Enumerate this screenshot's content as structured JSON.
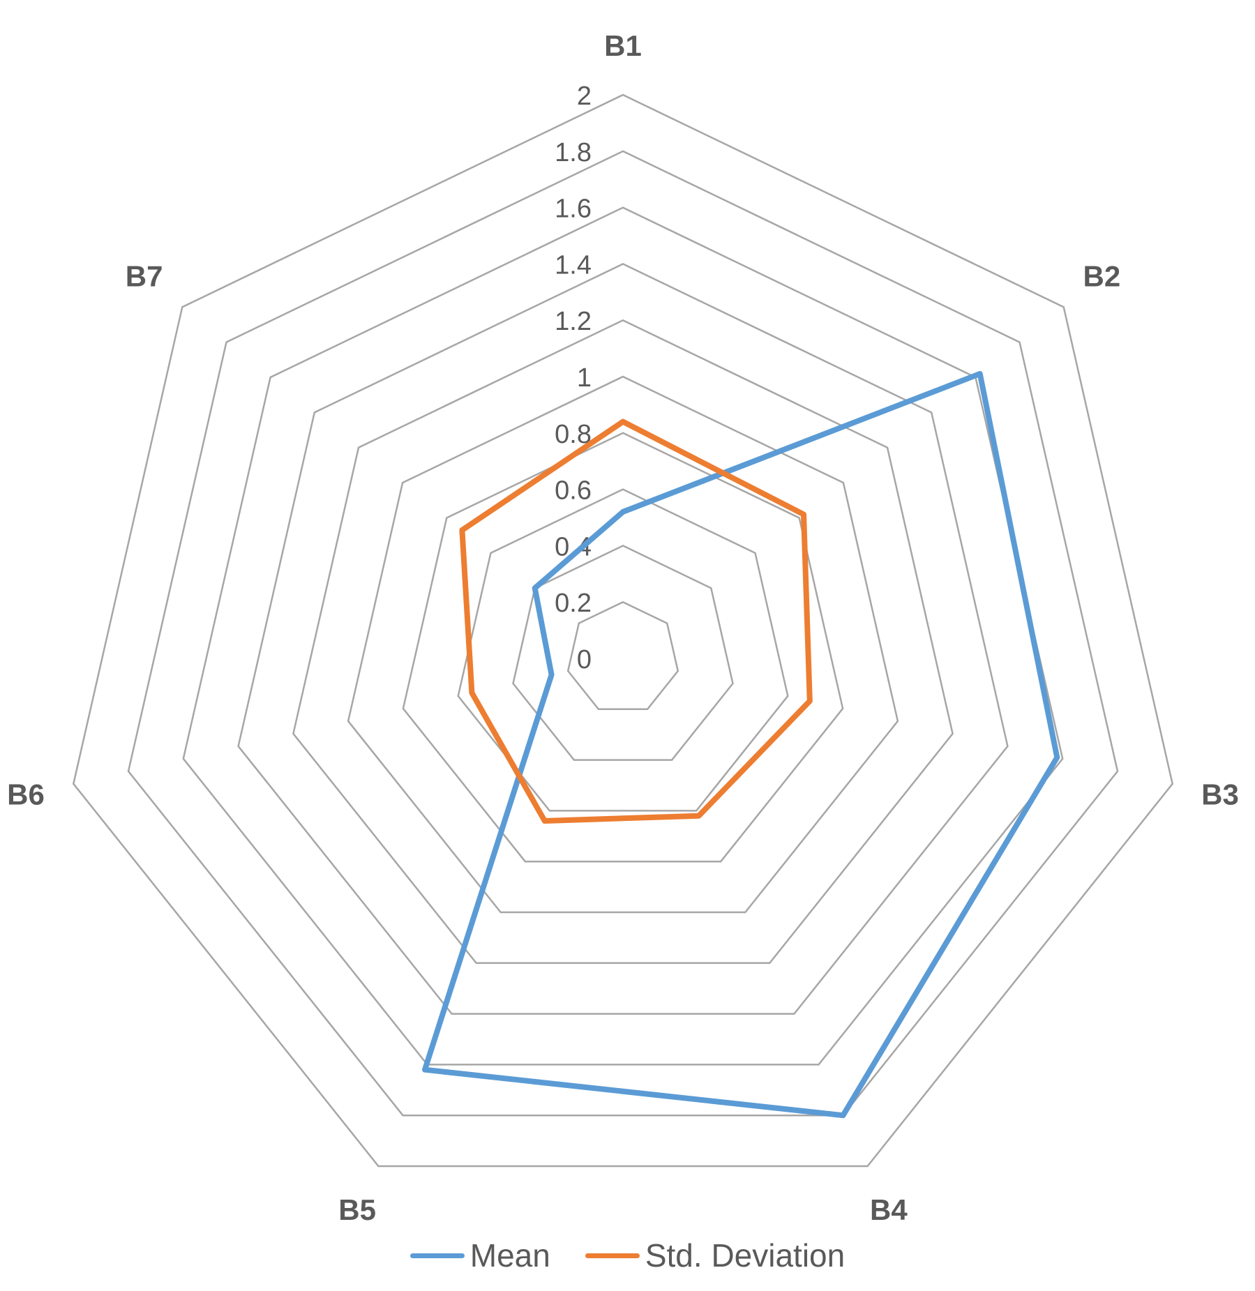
{
  "chart_data": {
    "type": "radar",
    "title": "",
    "categories": [
      "B1",
      "B2",
      "B3",
      "B4",
      "B5",
      "B6",
      "B7"
    ],
    "r_ticks": [
      "0",
      "0.2",
      "0.4",
      "0.6",
      "0.8",
      "1",
      "1.2",
      "1.4",
      "1.6",
      "1.8",
      "2"
    ],
    "rlim": [
      0,
      2
    ],
    "grid": true,
    "legend_position": "bottom",
    "series": [
      {
        "name": "Mean",
        "color": "#5B9BD5",
        "values": [
          0.52,
          1.62,
          1.58,
          1.8,
          1.62,
          0.26,
          0.4
        ]
      },
      {
        "name": "Std. Deviation",
        "color": "#ED7D31",
        "values": [
          0.84,
          0.82,
          0.68,
          0.62,
          0.64,
          0.55,
          0.73
        ]
      }
    ]
  },
  "colors": {
    "grid": "#A6A6A6",
    "category_label": "#595959",
    "tick_label": "#595959"
  }
}
